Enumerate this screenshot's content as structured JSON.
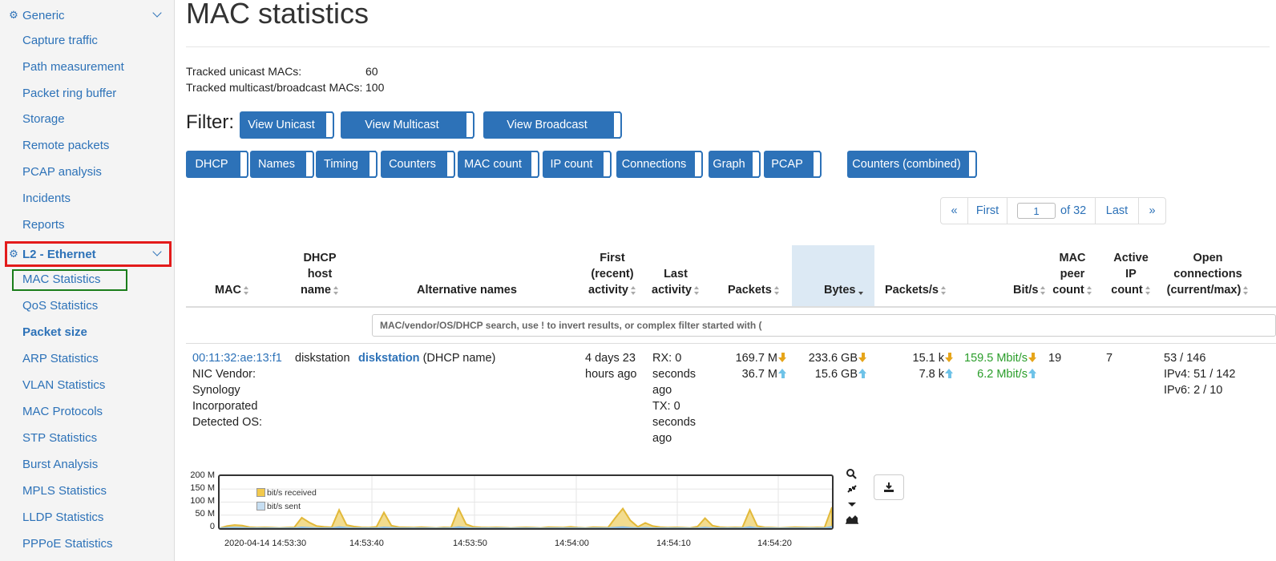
{
  "sidebar": {
    "groups": [
      {
        "label": "Generic"
      },
      {
        "label": "L2 - Ethernet"
      }
    ],
    "generic_items": [
      "Capture traffic",
      "Path measurement",
      "Packet ring buffer",
      "Storage",
      "Remote packets",
      "PCAP analysis",
      "Incidents",
      "Reports"
    ],
    "l2_items": [
      "MAC Statistics",
      "QoS Statistics",
      "Packet size",
      "ARP Statistics",
      "VLAN Statistics",
      "MAC Protocols",
      "STP Statistics",
      "Burst Analysis",
      "MPLS Statistics",
      "LLDP Statistics",
      "PPPoE Statistics"
    ],
    "active_item": "MAC Statistics",
    "highlight_colors": {
      "group_box": "#e31b1b",
      "item_box": "#1a7d1a"
    }
  },
  "page": {
    "title": "MAC statistics",
    "tracked_unicast_label": "Tracked unicast MACs:",
    "tracked_unicast_value": "60",
    "tracked_multicast_label": "Tracked multicast/broadcast MACs:",
    "tracked_multicast_value": "100"
  },
  "filter": {
    "label": "Filter:",
    "buttons": [
      "View Unicast",
      "View Multicast",
      "View Broadcast"
    ]
  },
  "column_toggles": [
    "DHCP",
    "Names",
    "Timing",
    "Counters",
    "MAC count",
    "IP count",
    "Connections",
    "Graph",
    "PCAP",
    "Counters (combined)"
  ],
  "pagination": {
    "prev": "«",
    "first": "First",
    "page": "1",
    "of": "of 32",
    "last": "Last",
    "next": "»"
  },
  "table": {
    "headers": {
      "mac": "MAC",
      "dhcp1": "DHCP",
      "dhcp2": "host",
      "dhcp3": "name",
      "alt": "Alternative names",
      "first1": "First",
      "first2": "(recent)",
      "first3": "activity",
      "last1": "Last",
      "last2": "activity",
      "packets": "Packets",
      "bytes": "Bytes",
      "pps": "Packets/s",
      "bps": "Bit/s",
      "peer1": "MAC",
      "peer2": "peer",
      "peer3": "count",
      "ip1": "Active",
      "ip2": "IP",
      "ip3": "count",
      "conn1": "Open",
      "conn2": "connections",
      "conn3": "(current/max)"
    },
    "search_placeholder": "MAC/vendor/OS/DHCP search, use ! to invert results, or complex filter started with (",
    "row": {
      "mac": "00:11:32:ae:13:f1",
      "vendor_lines": [
        "NIC Vendor:",
        "Synology",
        "Incorporated",
        "Detected OS:"
      ],
      "dhcp_name": "diskstation",
      "alt_name": "diskstation",
      "alt_suffix": "(DHCP name)",
      "first_activity": [
        "4 days 23",
        "hours ago"
      ],
      "last_activity": [
        "RX: 0",
        "seconds",
        "ago",
        "TX: 0",
        "seconds",
        "ago"
      ],
      "packets_rx": "169.7 M",
      "packets_tx": "36.7 M",
      "bytes_rx": "233.6 GB",
      "bytes_tx": "15.6 GB",
      "pps_rx": "15.1 k",
      "pps_tx": "7.8 k",
      "bps_rx": "159.5 Mbit/s",
      "bps_tx": "6.2 Mbit/s",
      "peer_count": "19",
      "ip_count": "7",
      "conn": [
        "53 / 146",
        "IPv4: 51 / 142",
        "IPv6: 2 / 10"
      ]
    }
  },
  "chart_data": {
    "type": "area",
    "y_ticks": [
      "200 M",
      "150 M",
      "100 M",
      "50 M",
      "0"
    ],
    "ylim": [
      0,
      200
    ],
    "x_ticks": [
      "2020-04-14 14:53:30",
      "14:53:40",
      "14:53:50",
      "14:54:00",
      "14:54:10",
      "14:54:20"
    ],
    "series": [
      {
        "name": "bit/s received",
        "color": "#e8c862",
        "values": [
          0,
          8,
          12,
          10,
          4,
          2,
          3,
          2,
          1,
          2,
          3,
          40,
          22,
          8,
          5,
          3,
          70,
          12,
          6,
          3,
          2,
          5,
          60,
          10,
          4,
          3,
          2,
          4,
          2,
          1,
          3,
          2,
          75,
          15,
          5,
          3,
          2,
          3,
          2,
          1,
          2,
          3,
          2,
          1,
          4,
          3,
          2,
          5,
          2,
          1,
          4,
          3,
          2,
          40,
          75,
          30,
          5,
          20,
          8,
          4,
          2,
          3,
          2,
          1,
          6,
          38,
          10,
          4,
          2,
          3,
          2,
          70,
          8,
          3,
          2,
          1,
          2,
          4,
          3,
          2,
          3,
          2,
          80
        ]
      },
      {
        "name": "bit/s sent",
        "color": "#a9cdea",
        "values": [
          0,
          2,
          3,
          2,
          1,
          1,
          1,
          1,
          0,
          1,
          1,
          4,
          2,
          1,
          1,
          1,
          5,
          2,
          1,
          1,
          1,
          1,
          4,
          2,
          1,
          1,
          1,
          1,
          1,
          0,
          1,
          1,
          5,
          2,
          1,
          1,
          1,
          1,
          1,
          0,
          1,
          1,
          1,
          0,
          1,
          1,
          1,
          1,
          1,
          0,
          1,
          1,
          1,
          3,
          5,
          2,
          1,
          2,
          1,
          1,
          1,
          1,
          1,
          0,
          1,
          3,
          1,
          1,
          1,
          1,
          1,
          5,
          1,
          1,
          1,
          0,
          1,
          1,
          1,
          1,
          1,
          1,
          6
        ]
      }
    ]
  }
}
